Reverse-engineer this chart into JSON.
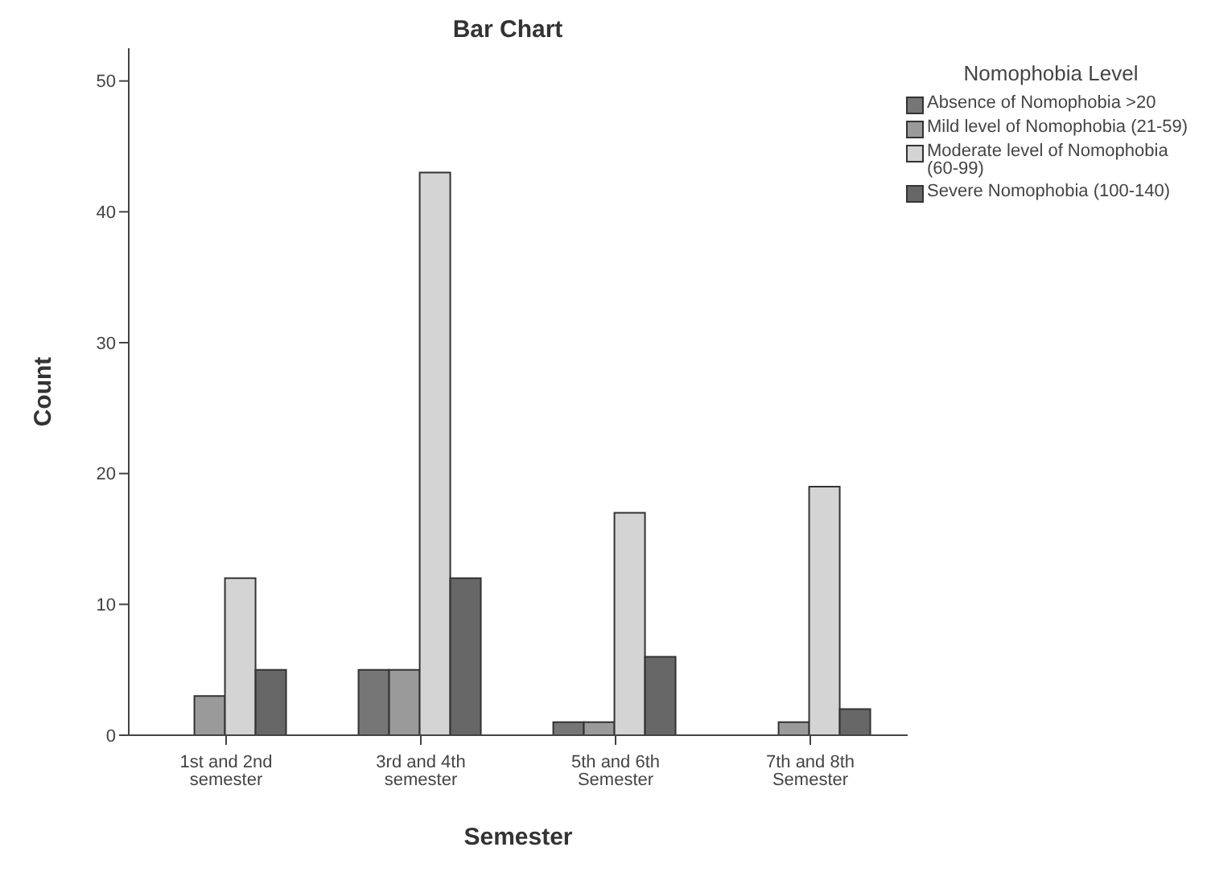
{
  "chart_data": {
    "type": "bar",
    "title": "Bar Chart",
    "xlabel": "Semester",
    "ylabel": "Count",
    "legend_title": "Nomophobia Level",
    "categories": [
      "1st and 2nd semester",
      "3rd and 4th semester",
      "5th and 6th Semester",
      "7th and 8th Semester"
    ],
    "series": [
      {
        "name": "Absence of Nomophobia >20",
        "color": "#767676",
        "values": [
          0,
          5,
          1,
          0
        ]
      },
      {
        "name": "Mild level of Nomophobia (21-59)",
        "color": "#9a9a9a",
        "values": [
          3,
          5,
          1,
          1
        ]
      },
      {
        "name": "Moderate level of Nomophobia (60-99)",
        "color": "#d4d4d4",
        "values": [
          12,
          43,
          17,
          19
        ]
      },
      {
        "name": "Severe Nomophobia (100-140)",
        "color": "#676767",
        "values": [
          5,
          12,
          6,
          2
        ]
      }
    ],
    "ylim": [
      0,
      52.5
    ],
    "yticks": [
      0,
      10,
      20,
      30,
      40,
      50
    ],
    "grid": false,
    "legend": "right"
  }
}
